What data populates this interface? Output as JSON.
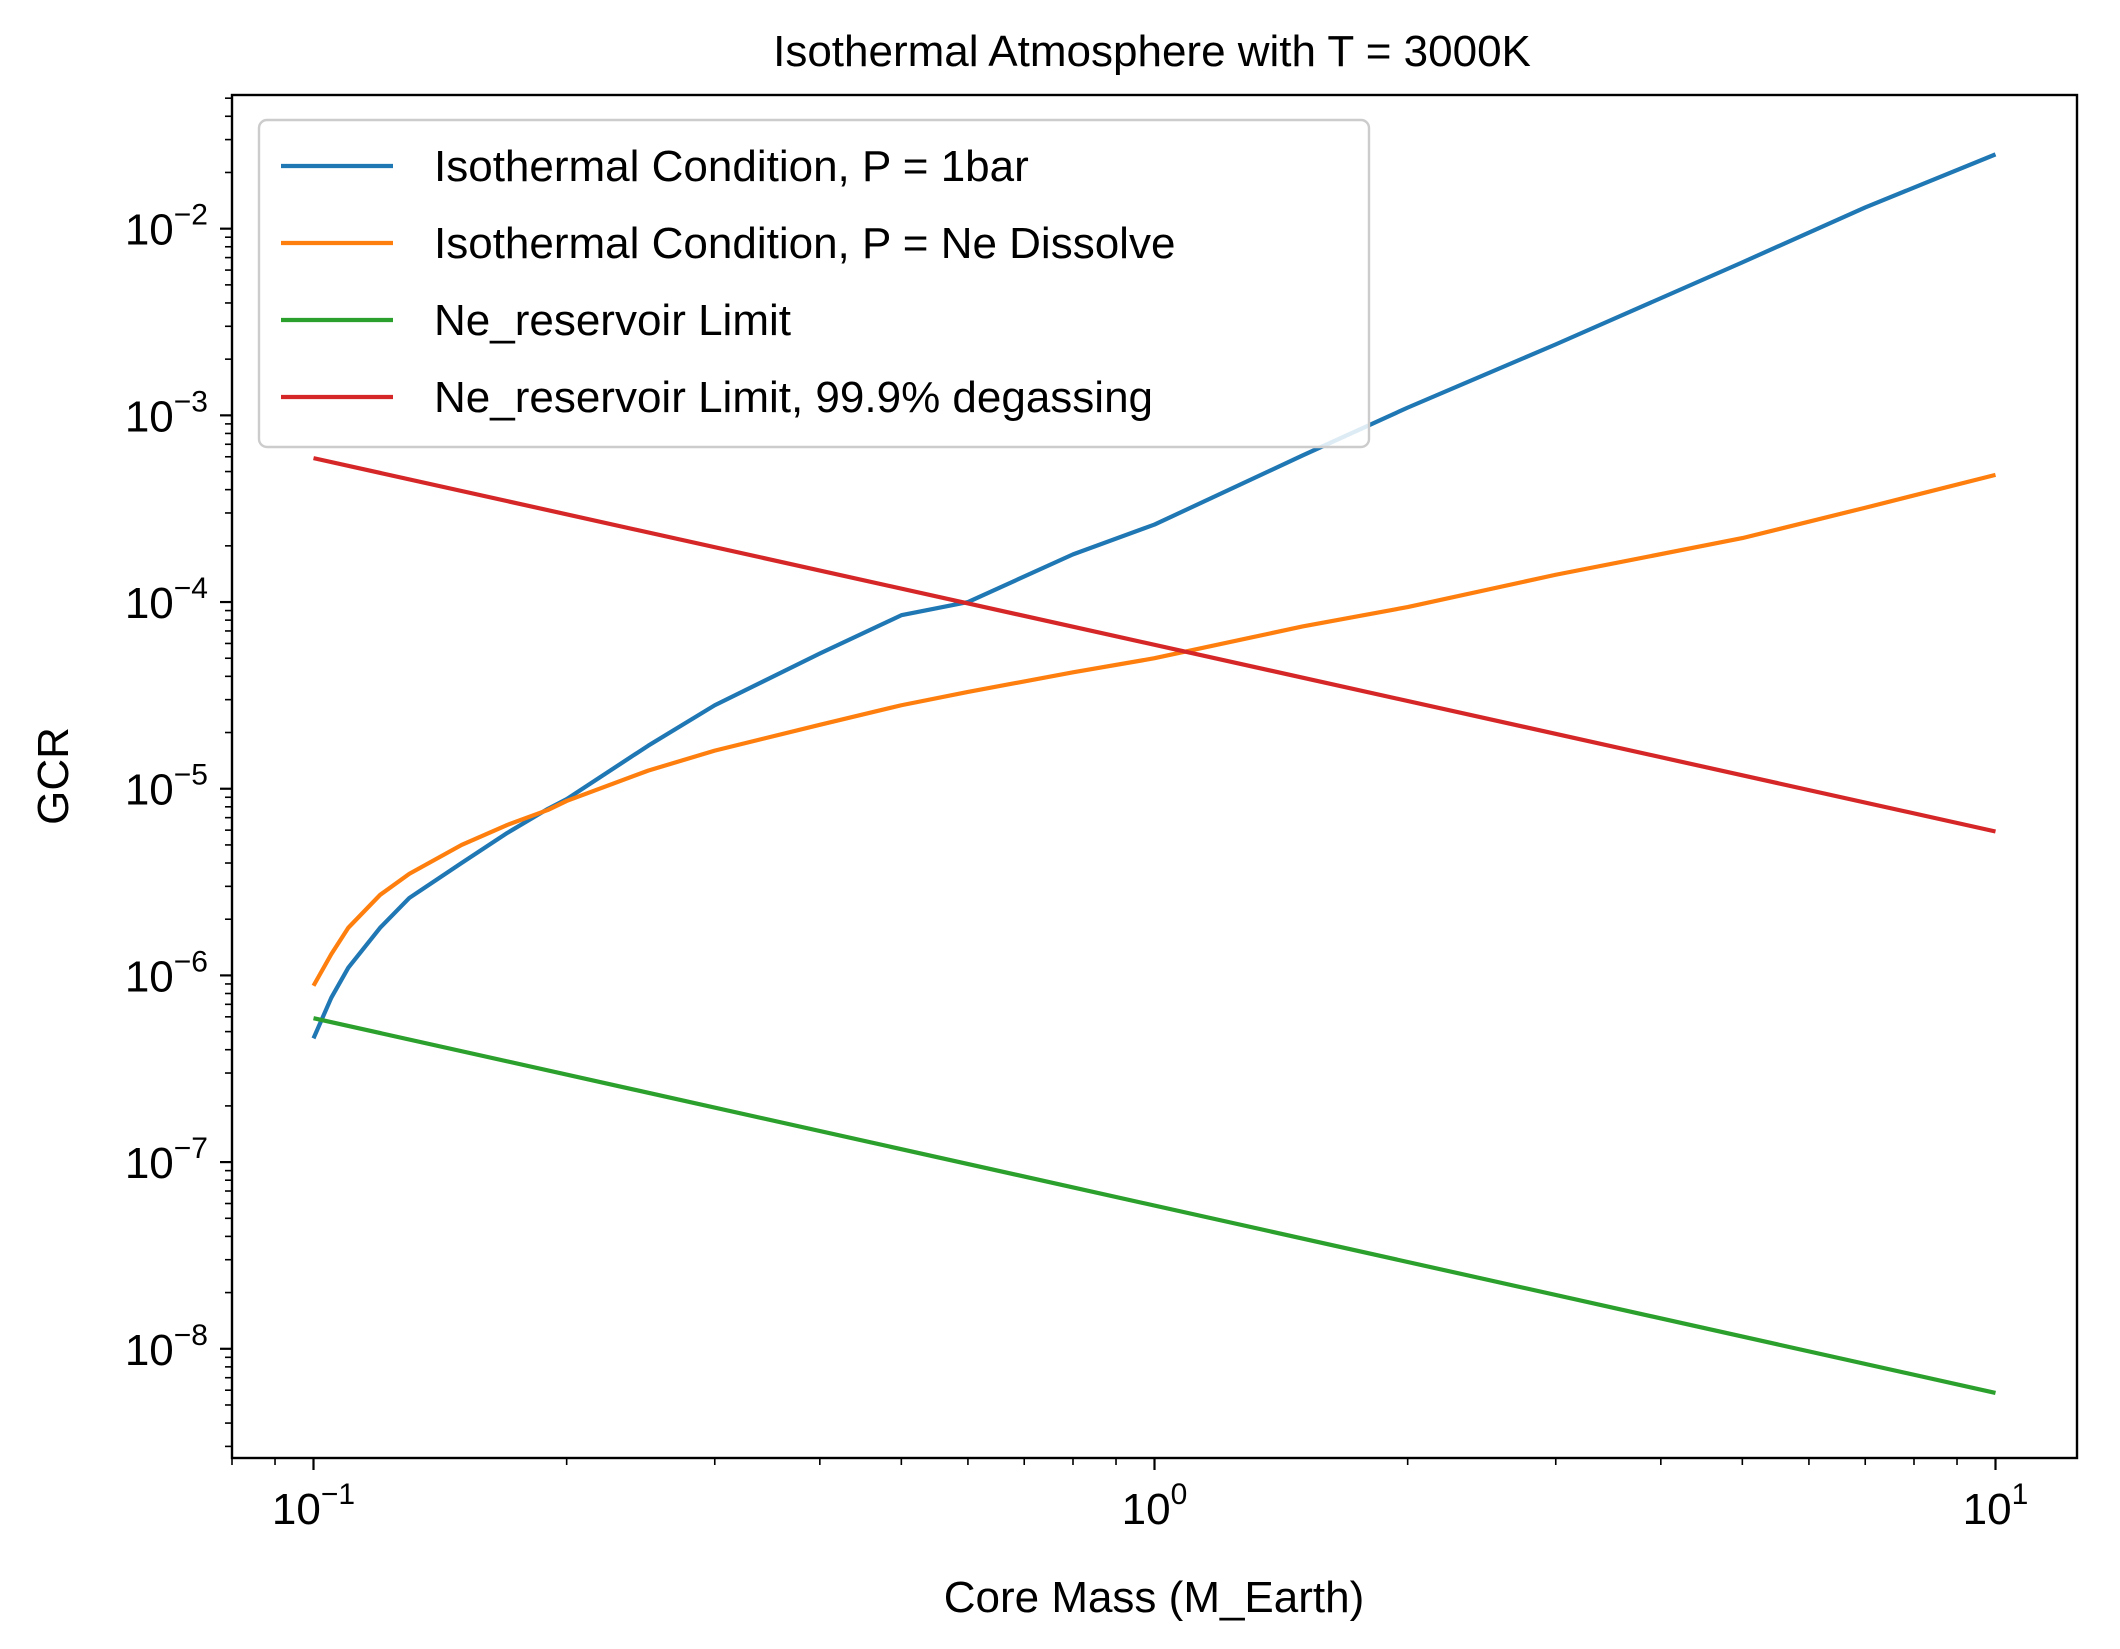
{
  "chart_data": {
    "type": "line",
    "title": "Isothermal Atmosphere with T = 3000K",
    "xlabel": "Core Mass (M_Earth)",
    "ylabel": "GCR",
    "xscale": "log",
    "yscale": "log",
    "xlim": [
      0.08,
      12.5
    ],
    "ylim": [
      2.6e-09,
      0.052
    ],
    "x_ticks": [
      {
        "value": 0.1,
        "base": "10",
        "exp": "−1"
      },
      {
        "value": 1,
        "base": "10",
        "exp": "0"
      },
      {
        "value": 10,
        "base": "10",
        "exp": "1"
      }
    ],
    "y_ticks": [
      {
        "value": 1e-08,
        "base": "10",
        "exp": "−8"
      },
      {
        "value": 1e-07,
        "base": "10",
        "exp": "−7"
      },
      {
        "value": 1e-06,
        "base": "10",
        "exp": "−6"
      },
      {
        "value": 1e-05,
        "base": "10",
        "exp": "−5"
      },
      {
        "value": 0.0001,
        "base": "10",
        "exp": "−4"
      },
      {
        "value": 0.001,
        "base": "10",
        "exp": "−3"
      },
      {
        "value": 0.01,
        "base": "10",
        "exp": "−2"
      }
    ],
    "grid": false,
    "legend_position": "upper-left",
    "series": [
      {
        "name": "Isothermal Condition, P = 1bar",
        "color": "#1f77b4",
        "x": [
          0.1,
          0.105,
          0.11,
          0.12,
          0.13,
          0.15,
          0.17,
          0.19,
          0.2,
          0.25,
          0.3,
          0.4,
          0.5,
          0.6,
          0.8,
          1,
          1.5,
          2,
          3,
          5,
          7,
          10
        ],
        "y": [
          4.6e-07,
          7.6e-07,
          1.1e-06,
          1.8e-06,
          2.6e-06,
          4e-06,
          5.8e-06,
          7.8e-06,
          8.8e-06,
          1.7e-05,
          2.8e-05,
          5.3e-05,
          8.5e-05,
          0.0001,
          0.00018,
          0.00026,
          0.00061,
          0.0011,
          0.0024,
          0.0066,
          0.013,
          0.025
        ]
      },
      {
        "name": "Isothermal Condition, P = Ne Dissolve",
        "color": "#ff7f0e",
        "x": [
          0.1,
          0.105,
          0.11,
          0.12,
          0.13,
          0.15,
          0.17,
          0.19,
          0.2,
          0.25,
          0.3,
          0.4,
          0.5,
          0.6,
          0.8,
          1,
          1.5,
          2,
          3,
          5,
          7,
          10
        ],
        "y": [
          8.8e-07,
          1.3e-06,
          1.8e-06,
          2.7e-06,
          3.5e-06,
          5e-06,
          6.4e-06,
          7.7e-06,
          8.6e-06,
          1.25e-05,
          1.6e-05,
          2.2e-05,
          2.8e-05,
          3.3e-05,
          4.2e-05,
          5e-05,
          7.4e-05,
          9.4e-05,
          0.00014,
          0.00022,
          0.00032,
          0.00048
        ]
      },
      {
        "name": "Ne_reservoir Limit",
        "color": "#2ca02c",
        "x": [
          0.1,
          10
        ],
        "y": [
          5.9e-07,
          5.8e-09
        ]
      },
      {
        "name": "Ne_reservoir Limit, 99.9% degassing",
        "color": "#d62728",
        "x": [
          0.1,
          10
        ],
        "y": [
          0.00059,
          5.9e-06
        ]
      }
    ]
  }
}
